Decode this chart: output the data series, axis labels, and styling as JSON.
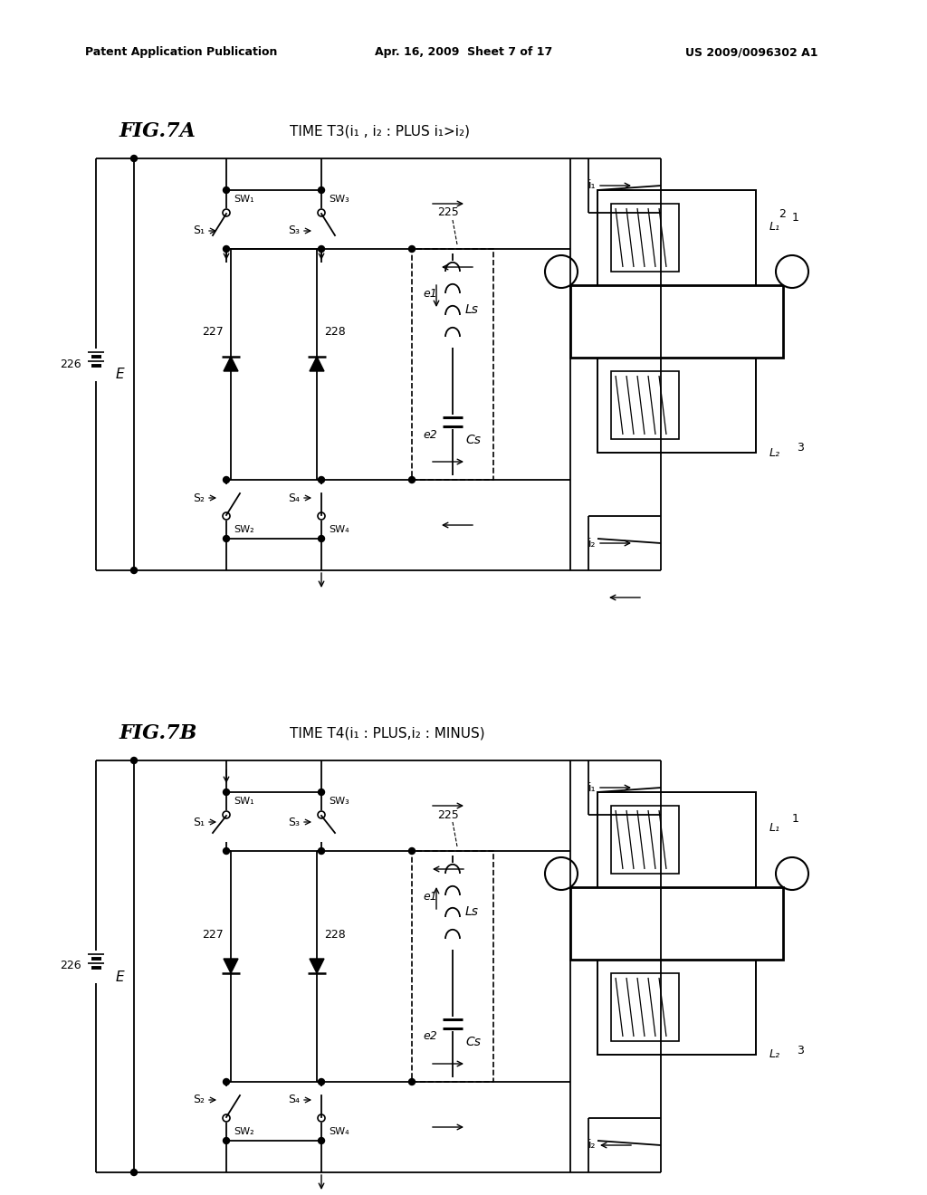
{
  "bg": "#ffffff",
  "header_left": "Patent Application Publication",
  "header_center": "Apr. 16, 2009  Sheet 7 of 17",
  "header_right": "US 2009/0096302 A1",
  "fig7a_label": "FIG.7A",
  "fig7a_title": "TIME T3(i₁ , i₂ : PLUS i₁>i₂)",
  "fig7b_label": "FIG.7B",
  "fig7b_title": "TIME T4(i₁ : PLUS,i₂ : MINUS)"
}
